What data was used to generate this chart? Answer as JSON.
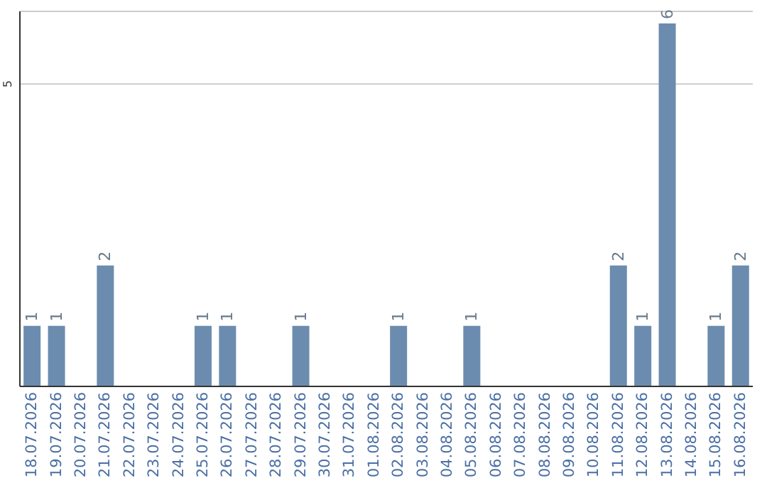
{
  "chart_data": {
    "type": "bar",
    "categories": [
      "18.07.2026",
      "19.07.2026",
      "20.07.2026",
      "21.07.2026",
      "22.07.2026",
      "23.07.2026",
      "24.07.2026",
      "25.07.2026",
      "26.07.2026",
      "27.07.2026",
      "28.07.2026",
      "29.07.2026",
      "30.07.2026",
      "31.07.2026",
      "01.08.2026",
      "02.08.2026",
      "03.08.2026",
      "04.08.2026",
      "05.08.2026",
      "06.08.2026",
      "07.08.2026",
      "08.08.2026",
      "09.08.2026",
      "10.08.2026",
      "11.08.2026",
      "12.08.2026",
      "13.08.2026",
      "14.08.2026",
      "15.08.2026",
      "16.08.2026"
    ],
    "values": [
      1,
      1,
      0,
      2,
      0,
      0,
      0,
      1,
      1,
      0,
      0,
      1,
      0,
      0,
      0,
      1,
      0,
      0,
      1,
      0,
      0,
      0,
      0,
      0,
      2,
      1,
      6,
      0,
      1,
      2
    ],
    "value_labels": [
      "1",
      "1",
      null,
      "2",
      null,
      null,
      null,
      "1",
      "1",
      null,
      null,
      "1",
      null,
      null,
      null,
      "1",
      null,
      null,
      "1",
      null,
      null,
      null,
      null,
      null,
      "2",
      "1",
      "6",
      null,
      "1",
      "2"
    ],
    "color": "#6b8cae",
    "ylim": [
      0,
      6.2
    ],
    "yticks": [
      5
    ],
    "grid": "y"
  }
}
